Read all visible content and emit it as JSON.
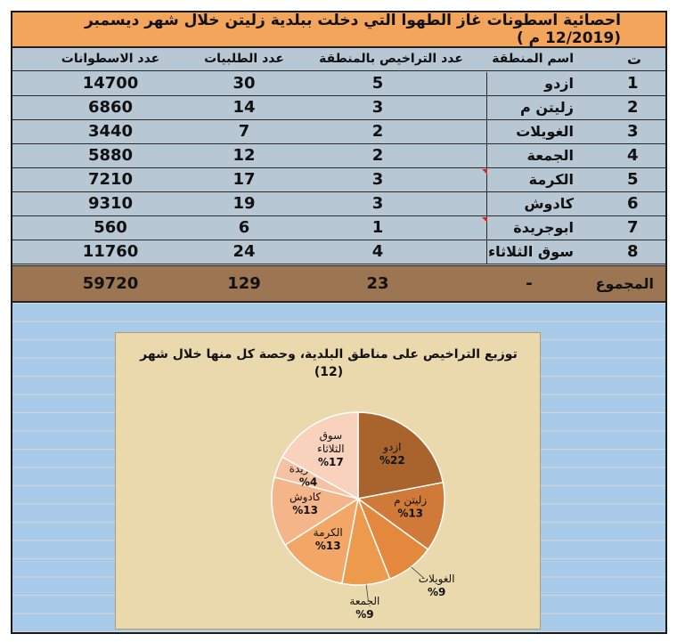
{
  "title": "احصائية اسطونات غاز الطهوا التي دخلت ببلدية زليتن خلال شهر ديسمبر (12/2019 م )",
  "headers": {
    "index": "ت",
    "area": "اسم المنطقة",
    "licenses": "عدد التراخيص بالمنطقة",
    "requests": "عدد الطلبيات",
    "cylinders": "عدد الاسطوانات"
  },
  "rows": [
    {
      "index": "1",
      "area": "ازدو",
      "licenses": "5",
      "requests": "30",
      "cylinders": "14700",
      "flag": false
    },
    {
      "index": "2",
      "area": "زليتن م",
      "licenses": "3",
      "requests": "14",
      "cylinders": "6860",
      "flag": false
    },
    {
      "index": "3",
      "area": "الغويلات",
      "licenses": "2",
      "requests": "7",
      "cylinders": "3440",
      "flag": false
    },
    {
      "index": "4",
      "area": "الجمعة",
      "licenses": "2",
      "requests": "12",
      "cylinders": "5880",
      "flag": false
    },
    {
      "index": "5",
      "area": "الكرمة",
      "licenses": "3",
      "requests": "17",
      "cylinders": "7210",
      "flag": true
    },
    {
      "index": "6",
      "area": "كادوش",
      "licenses": "3",
      "requests": "19",
      "cylinders": "9310",
      "flag": false
    },
    {
      "index": "7",
      "area": "ابوجريدة",
      "licenses": "1",
      "requests": "6",
      "cylinders": "560",
      "flag": true
    },
    {
      "index": "8",
      "area": "سوق الثلاثاء",
      "licenses": "4",
      "requests": "24",
      "cylinders": "11760",
      "flag": false
    }
  ],
  "total": {
    "label": "المجموع",
    "dash": "-",
    "licenses": "23",
    "requests": "129",
    "cylinders": "59720"
  },
  "colors": {
    "title_bg": "#f4a55c",
    "table_bg": "#b8c7d4",
    "total_bg": "#9c7552",
    "sheet_bg": "#a9cbea",
    "chart_bg": "#ead9ad"
  },
  "chart_data": {
    "type": "pie",
    "title_line1": "توزيع التراخيص على مناطق البلدية، وحصة كل منها خلال شهر",
    "title_line2": "(12)",
    "slices": [
      {
        "label": "ازدو",
        "value": 22,
        "pct_text": "%22",
        "color": "#a8642c"
      },
      {
        "label": "زليتن م",
        "value": 13,
        "pct_text": "%13",
        "color": "#cf7a38"
      },
      {
        "label": "الغويلات",
        "value": 9,
        "pct_text": "%9",
        "color": "#e3883d"
      },
      {
        "label": "الجمعة",
        "value": 9,
        "pct_text": "%9",
        "color": "#ee9a4c"
      },
      {
        "label": "الكرمة",
        "value": 13,
        "pct_text": "%13",
        "color": "#f3a766"
      },
      {
        "label": "كادوش",
        "value": 13,
        "pct_text": "%13",
        "color": "#f4b589"
      },
      {
        "label": "ابوجريدة",
        "value": 4,
        "pct_text": "%4",
        "color": "#f6c2a4"
      },
      {
        "label": "سوق",
        "label2": "الثلاثاء",
        "value": 17,
        "pct_text": "%17",
        "color": "#f8d2bd"
      }
    ]
  }
}
